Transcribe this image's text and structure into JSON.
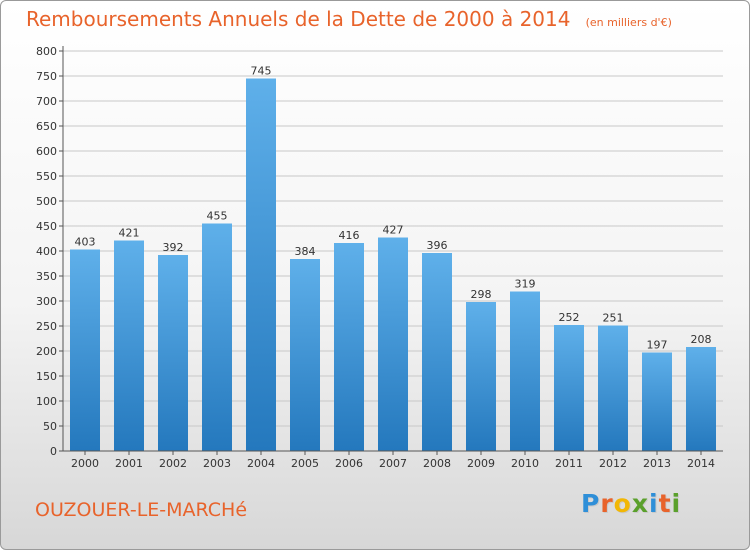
{
  "header": {
    "title": "Remboursements Annuels de la Dette de 2000 à 2014",
    "unit_note": "(en milliers d'€)"
  },
  "footer": {
    "commune": "OUZOUER-LE-MARCHé",
    "brand": {
      "text": "Proxiti",
      "letters": [
        {
          "char": "P",
          "color": "#2f8fd8"
        },
        {
          "char": "r",
          "color": "#e8632b"
        },
        {
          "char": "o",
          "color": "#f2b705"
        },
        {
          "char": "x",
          "color": "#5aa02c"
        },
        {
          "char": "i",
          "color": "#2f8fd8"
        },
        {
          "char": "t",
          "color": "#e8632b"
        },
        {
          "char": "i",
          "color": "#5aa02c"
        }
      ]
    }
  },
  "colors": {
    "title": "#e8632b",
    "bar_top": "#5fb0ea",
    "bar_bottom": "#2478bd",
    "grid": "#c8c8c8",
    "text": "#333333"
  },
  "chart_data": {
    "type": "bar",
    "title": "Remboursements Annuels de la Dette de 2000 à 2014",
    "subtitle": "(en milliers d'€)",
    "xlabel": "",
    "ylabel": "",
    "categories": [
      "2000",
      "2001",
      "2002",
      "2003",
      "2004",
      "2005",
      "2006",
      "2007",
      "2008",
      "2009",
      "2010",
      "2011",
      "2012",
      "2013",
      "2014"
    ],
    "values": [
      403,
      421,
      392,
      455,
      745,
      384,
      416,
      427,
      396,
      298,
      319,
      252,
      251,
      197,
      208
    ],
    "ylim": [
      0,
      800
    ],
    "ytick_step": 50,
    "grid": true,
    "data_labels": true
  }
}
